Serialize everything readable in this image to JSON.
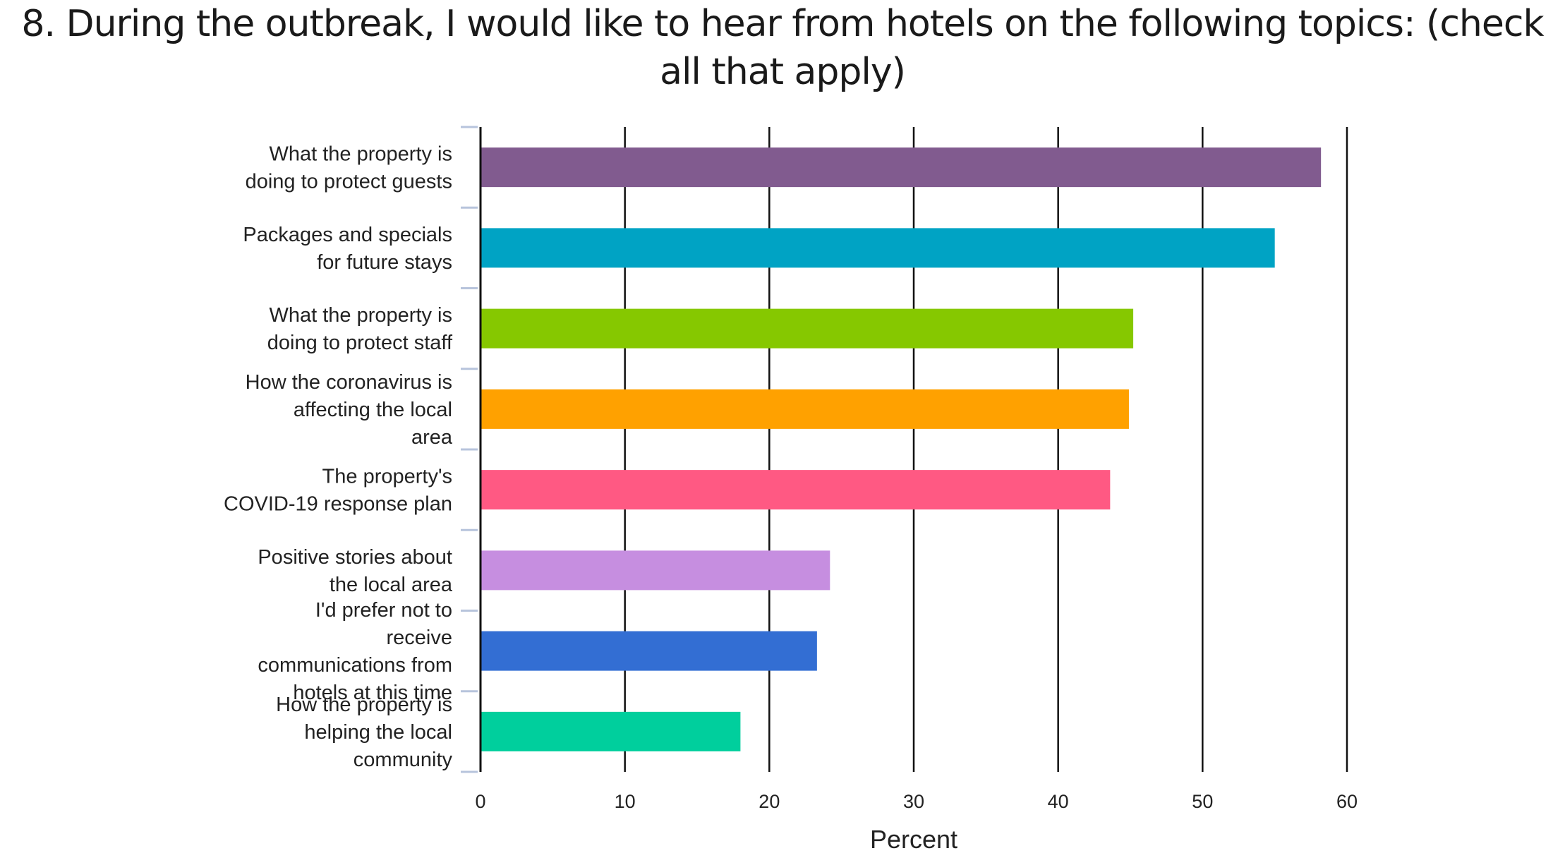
{
  "chart_data": {
    "type": "bar",
    "orientation": "horizontal",
    "title": "8. During the outbreak, I would like to hear from hotels on the following topics: (check all that apply)",
    "xlabel": "Percent",
    "ylabel": "",
    "xlim": [
      0,
      60
    ],
    "xticks": [
      "0",
      "10",
      "20",
      "30",
      "40",
      "50",
      "60"
    ],
    "grid": true,
    "categories": [
      [
        "What the property is",
        "doing to protect guests"
      ],
      [
        "Packages and specials",
        "for future stays"
      ],
      [
        "What the property is",
        "doing to protect staff"
      ],
      [
        "How the coronavirus is",
        "affecting the local",
        "area"
      ],
      [
        "The property's",
        "COVID-19 response plan"
      ],
      [
        "Positive stories about",
        "the local area"
      ],
      [
        "I'd prefer not to",
        "receive",
        "communications from",
        "hotels at this time"
      ],
      [
        "How the property is",
        "helping the local",
        "community"
      ]
    ],
    "values": [
      58.2,
      55.0,
      45.2,
      44.9,
      43.6,
      24.2,
      23.3,
      18.0
    ],
    "colors": [
      "#815b8f",
      "#00a3c4",
      "#86c800",
      "#ffa100",
      "#ff5983",
      "#c68ee0",
      "#336ed3",
      "#00cf9d"
    ]
  }
}
